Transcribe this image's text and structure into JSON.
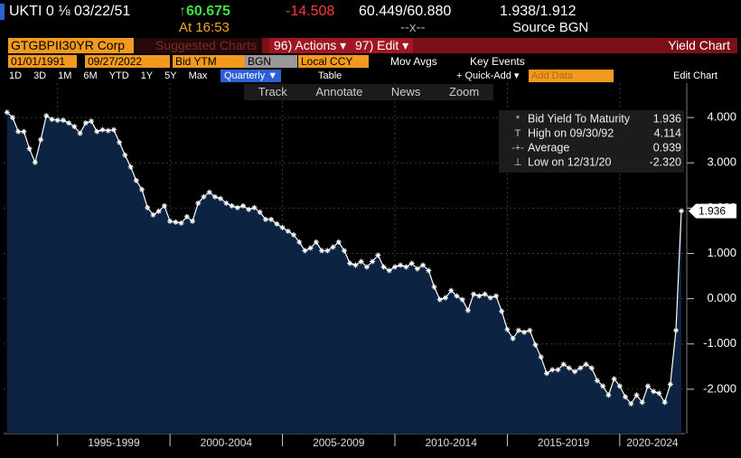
{
  "header": {
    "ticker": "UKTI 0 ⅛ 03/22/51",
    "price": "↑60.675",
    "change": "-14.508",
    "bid_ask": "60.449/60.880",
    "yield_bid_ask": "1.938/1.912",
    "time": "At 16:53",
    "separator": "--x--",
    "source": "Source BGN"
  },
  "menu": {
    "security": "GTGBPII30YR Corp",
    "suggested": "Suggested Charts",
    "actions": "96) Actions ▾",
    "edit": "97) Edit ▾",
    "title": "Yield Chart"
  },
  "settings": {
    "start": "01/01/1991",
    "end": "09/27/2022",
    "field": "Bid YTM",
    "pricing_source": "BGN",
    "currency": "Local CCY",
    "mov_avgs": "Mov Avgs",
    "key_events": "Key Events"
  },
  "periods": [
    "1D",
    "3D",
    "1M",
    "6M",
    "YTD",
    "1Y",
    "5Y",
    "Max"
  ],
  "frequency": "Quarterly ▼",
  "table": "Table",
  "quick_add": "+ Quick-Add ▾",
  "add_data": "Add Data",
  "edit_chart": "Edit Chart",
  "tools": [
    "Track",
    "Annotate",
    "News",
    "Zoom"
  ],
  "chart_data": {
    "type": "area",
    "name": "Bid Yield To Maturity",
    "color": "#ffffff",
    "fill": "#0c2442",
    "grid": true,
    "legend": [
      {
        "label": "Bid Yield To Maturity",
        "value": "1.936"
      },
      {
        "label": "High on 09/30/92",
        "value": "4.114"
      },
      {
        "label": "Average",
        "value": "0.939"
      },
      {
        "label": "Low on 12/31/20",
        "value": "-2.320"
      }
    ],
    "xlim": [
      1992.6,
      2022.9
    ],
    "ylim": [
      -2.98,
      4.76
    ],
    "xticks": [
      {
        "value": 1995,
        "label": "1995-1999"
      },
      {
        "value": 2000,
        "label": "2000-2004"
      },
      {
        "value": 2005,
        "label": "2005-2009"
      },
      {
        "value": 2010,
        "label": "2010-2014"
      },
      {
        "value": 2015,
        "label": "2015-2019"
      },
      {
        "value": 2020,
        "label": "2020-2024"
      }
    ],
    "yticks": [
      {
        "value": 4,
        "label": "4.000"
      },
      {
        "value": 3,
        "label": "3.000"
      },
      {
        "value": 2,
        "label": "2.000"
      },
      {
        "value": 1,
        "label": "1.000"
      },
      {
        "value": 0,
        "label": "0.000"
      },
      {
        "value": -1,
        "label": "-1.000"
      },
      {
        "value": -2,
        "label": "-2.000"
      }
    ],
    "x": [
      1992.75,
      1993,
      1993.25,
      1993.5,
      1993.75,
      1994,
      1994.25,
      1994.5,
      1994.75,
      1995,
      1995.25,
      1995.5,
      1995.75,
      1996,
      1996.25,
      1996.5,
      1996.75,
      1997,
      1997.25,
      1997.5,
      1997.75,
      1998,
      1998.25,
      1998.5,
      1998.75,
      1999,
      1999.25,
      1999.5,
      1999.75,
      2000,
      2000.25,
      2000.5,
      2000.75,
      2001,
      2001.25,
      2001.5,
      2001.75,
      2002,
      2002.25,
      2002.5,
      2002.75,
      2003,
      2003.25,
      2003.5,
      2003.75,
      2004,
      2004.25,
      2004.5,
      2004.75,
      2005,
      2005.25,
      2005.5,
      2005.75,
      2006,
      2006.25,
      2006.5,
      2006.75,
      2007,
      2007.25,
      2007.5,
      2007.75,
      2008,
      2008.25,
      2008.5,
      2008.75,
      2009,
      2009.25,
      2009.5,
      2009.75,
      2010,
      2010.25,
      2010.5,
      2010.75,
      2011,
      2011.25,
      2011.5,
      2011.75,
      2012,
      2012.25,
      2012.5,
      2012.75,
      2013,
      2013.25,
      2013.5,
      2013.75,
      2014,
      2014.25,
      2014.5,
      2014.75,
      2015,
      2015.25,
      2015.5,
      2015.75,
      2016,
      2016.25,
      2016.5,
      2016.75,
      2017,
      2017.25,
      2017.5,
      2017.75,
      2018,
      2018.25,
      2018.5,
      2018.75,
      2019,
      2019.25,
      2019.5,
      2019.75,
      2020,
      2020.25,
      2020.5,
      2020.75,
      2021,
      2021.25,
      2021.5,
      2021.75,
      2022,
      2022.25,
      2022.5,
      2022.74
    ],
    "values": [
      4.114,
      4.0,
      3.69,
      3.69,
      3.31,
      3.01,
      3.51,
      4.04,
      3.96,
      3.94,
      3.94,
      3.88,
      3.8,
      3.65,
      3.88,
      3.92,
      3.69,
      3.73,
      3.71,
      3.73,
      3.45,
      3.17,
      2.91,
      2.61,
      2.41,
      2.01,
      1.85,
      1.93,
      2.05,
      1.71,
      1.69,
      1.67,
      1.81,
      1.71,
      2.11,
      2.25,
      2.35,
      2.25,
      2.21,
      2.11,
      2.05,
      2.01,
      2.05,
      1.97,
      2.01,
      1.91,
      1.75,
      1.75,
      1.65,
      1.57,
      1.49,
      1.41,
      1.25,
      1.06,
      1.12,
      1.25,
      1.06,
      1.06,
      1.14,
      1.25,
      1.06,
      0.78,
      0.74,
      0.82,
      0.7,
      0.82,
      0.96,
      0.7,
      0.62,
      0.7,
      0.74,
      0.7,
      0.78,
      0.66,
      0.74,
      0.62,
      0.26,
      -0.02,
      0.02,
      0.18,
      0.06,
      -0.02,
      -0.26,
      0.1,
      0.06,
      0.1,
      0.02,
      0.06,
      -0.28,
      -0.68,
      -0.88,
      -0.7,
      -0.74,
      -0.7,
      -1.02,
      -1.29,
      -1.65,
      -1.57,
      -1.57,
      -1.45,
      -1.53,
      -1.61,
      -1.53,
      -1.45,
      -1.53,
      -1.81,
      -1.93,
      -2.13,
      -1.77,
      -1.93,
      -2.17,
      -2.32,
      -2.13,
      -2.29,
      -1.93,
      -2.05,
      -2.09,
      -2.29,
      -1.89,
      -0.7,
      1.936
    ]
  }
}
